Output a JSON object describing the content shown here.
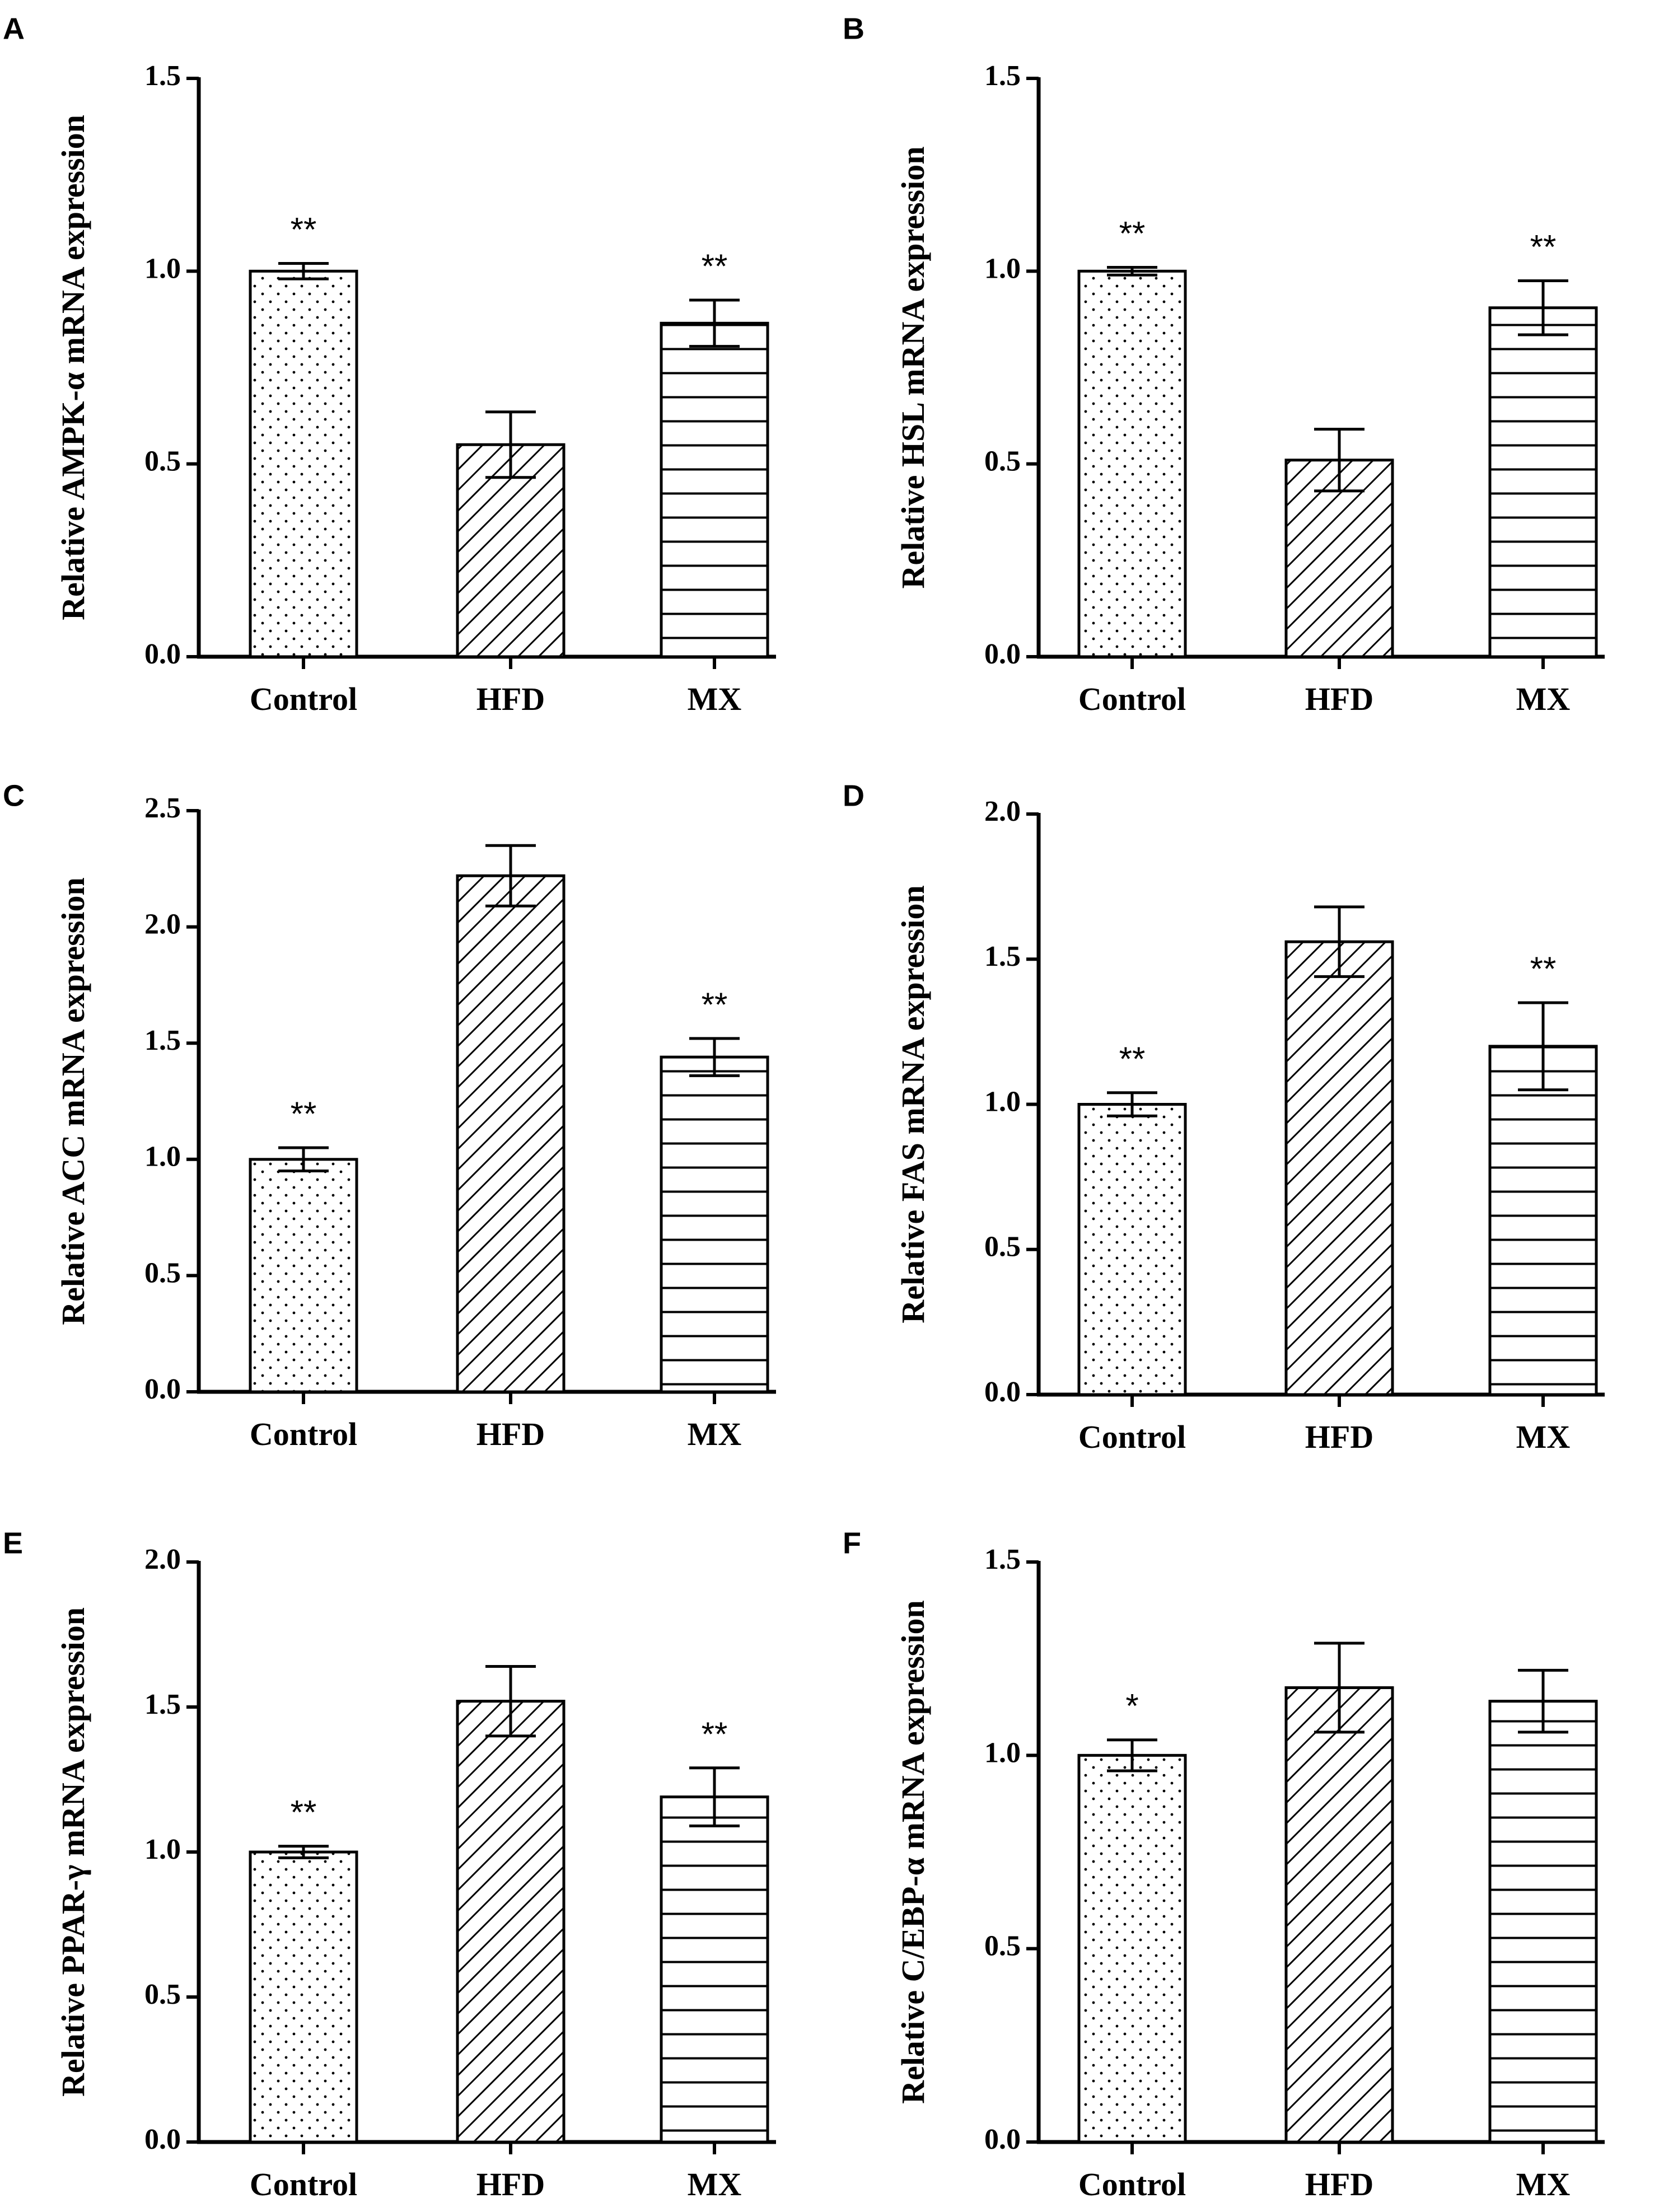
{
  "colors": {
    "ink": "#000000",
    "background": "#ffffff"
  },
  "chart_data": [
    {
      "type": "bar",
      "panel": "A",
      "title": "",
      "xlabel": "",
      "ylabel": "Relative AMPK-α mRNA expression",
      "categories": [
        "Control",
        "HFD",
        "MX"
      ],
      "values": [
        1.0,
        0.55,
        0.865
      ],
      "errors": [
        0.02,
        0.085,
        0.06
      ],
      "significance": [
        "**",
        "",
        "**"
      ],
      "patterns": [
        "dots",
        "diagonal",
        "horizontal"
      ],
      "ylim": [
        0,
        1.5
      ],
      "yticks": [
        0.0,
        0.5,
        1.0,
        1.5
      ],
      "ytick_labels": [
        "0.0",
        "0.5",
        "1.0",
        "1.5"
      ]
    },
    {
      "type": "bar",
      "panel": "B",
      "title": "",
      "xlabel": "",
      "ylabel": "Relative HSL mRNA expression",
      "categories": [
        "Control",
        "HFD",
        "MX"
      ],
      "values": [
        1.0,
        0.51,
        0.905
      ],
      "errors": [
        0.01,
        0.08,
        0.07
      ],
      "significance": [
        "**",
        "",
        "**"
      ],
      "patterns": [
        "dots",
        "diagonal",
        "horizontal"
      ],
      "ylim": [
        0,
        1.5
      ],
      "yticks": [
        0.0,
        0.5,
        1.0,
        1.5
      ],
      "ytick_labels": [
        "0.0",
        "0.5",
        "1.0",
        "1.5"
      ]
    },
    {
      "type": "bar",
      "panel": "C",
      "title": "",
      "xlabel": "",
      "ylabel": "Relative ACC mRNA expression",
      "categories": [
        "Control",
        "HFD",
        "MX"
      ],
      "values": [
        1.0,
        2.22,
        1.44
      ],
      "errors": [
        0.05,
        0.13,
        0.08
      ],
      "significance": [
        "**",
        "",
        "**"
      ],
      "patterns": [
        "dots",
        "diagonal",
        "horizontal"
      ],
      "ylim": [
        0,
        2.5
      ],
      "yticks": [
        0.0,
        0.5,
        1.0,
        1.5,
        2.0,
        2.5
      ],
      "ytick_labels": [
        "0.0",
        "0.5",
        "1.0",
        "1.5",
        "2.0",
        "2.5"
      ]
    },
    {
      "type": "bar",
      "panel": "D",
      "title": "",
      "xlabel": "",
      "ylabel": "Relative FAS mRNA expression",
      "categories": [
        "Control",
        "HFD",
        "MX"
      ],
      "values": [
        1.0,
        1.56,
        1.2
      ],
      "errors": [
        0.04,
        0.12,
        0.15
      ],
      "significance": [
        "**",
        "",
        "**"
      ],
      "patterns": [
        "dots",
        "diagonal",
        "horizontal"
      ],
      "ylim": [
        0,
        2.0
      ],
      "yticks": [
        0.0,
        0.5,
        1.0,
        1.5,
        2.0
      ],
      "ytick_labels": [
        "0.0",
        "0.5",
        "1.0",
        "1.5",
        "2.0"
      ]
    },
    {
      "type": "bar",
      "panel": "E",
      "title": "",
      "xlabel": "",
      "ylabel": "Relative PPAR-γ mRNA expression",
      "categories": [
        "Control",
        "HFD",
        "MX"
      ],
      "values": [
        1.0,
        1.52,
        1.19
      ],
      "errors": [
        0.02,
        0.12,
        0.1
      ],
      "significance": [
        "**",
        "",
        "**"
      ],
      "patterns": [
        "dots",
        "diagonal",
        "horizontal"
      ],
      "ylim": [
        0,
        2.0
      ],
      "yticks": [
        0.0,
        0.5,
        1.0,
        1.5,
        2.0
      ],
      "ytick_labels": [
        "0.0",
        "0.5",
        "1.0",
        "1.5",
        "2.0"
      ]
    },
    {
      "type": "bar",
      "panel": "F",
      "title": "",
      "xlabel": "",
      "ylabel": "Relative C/EBP-α mRNA expression",
      "categories": [
        "Control",
        "HFD",
        "MX"
      ],
      "values": [
        1.0,
        1.175,
        1.14
      ],
      "errors": [
        0.04,
        0.115,
        0.08
      ],
      "significance": [
        "*",
        "",
        ""
      ],
      "patterns": [
        "dots",
        "diagonal",
        "horizontal"
      ],
      "ylim": [
        0,
        1.5
      ],
      "yticks": [
        0.0,
        0.5,
        1.0,
        1.5
      ],
      "ytick_labels": [
        "0.0",
        "0.5",
        "1.0",
        "1.5"
      ]
    }
  ]
}
